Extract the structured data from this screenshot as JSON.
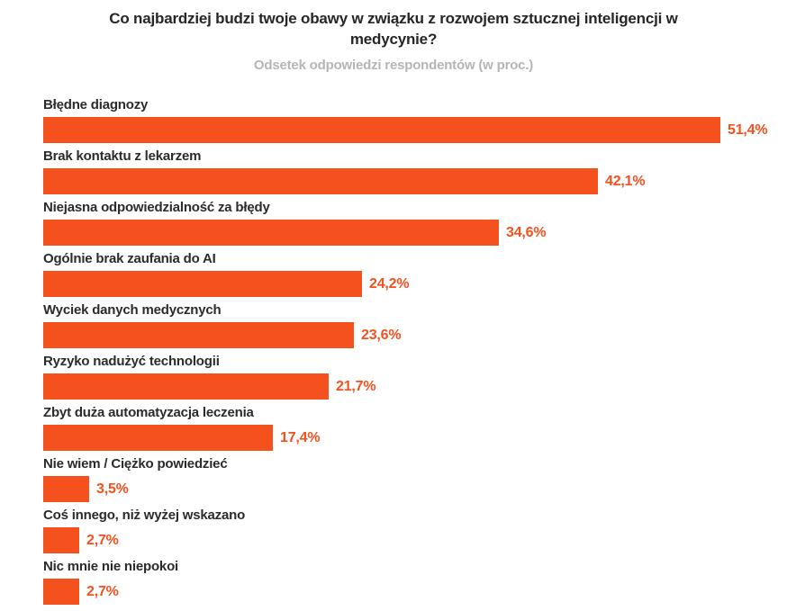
{
  "header": {
    "title": "Co najbardziej budzi twoje obawy w związku z rozwojem sztucznej inteligencji w medycynie?",
    "subtitle": "Odsetek odpowiedzi respondentów (w proc.)"
  },
  "colors": {
    "background": "#ffffff",
    "bar": "#f4511e",
    "value_label": "#f4511e",
    "category_label": "#2b2b2b",
    "title": "#262626",
    "subtitle": "#b5b5b5"
  },
  "chart_data": {
    "type": "bar",
    "orientation": "horizontal",
    "title": "Co najbardziej budzi twoje obawy w związku z rozwojem sztucznej inteligencji w medycynie?",
    "subtitle": "Odsetek odpowiedzi respondentów (w proc.)",
    "unit": "%",
    "grid": false,
    "legend": false,
    "xlim": [
      0,
      51.4
    ],
    "categories": [
      "Błędne diagnozy",
      "Brak kontaktu z lekarzem",
      "Niejasna odpowiedzialność za błędy",
      "Ogólnie brak zaufania do AI",
      "Wyciek danych medycznych",
      "Ryzyko nadużyć technologii",
      "Zbyt duża automatyzacja leczenia",
      "Nie wiem / Ciężko powiedzieć",
      "Coś innego, niż wyżej wskazano",
      "Nic mnie nie niepokoi"
    ],
    "values": [
      51.4,
      42.1,
      34.6,
      24.2,
      23.6,
      21.7,
      17.4,
      3.5,
      2.7,
      2.7
    ],
    "value_labels": [
      "51,4%",
      "42,1%",
      "34,6%",
      "24,2%",
      "23,6%",
      "21,7%",
      "17,4%",
      "3,5%",
      "2,7%",
      "2,7%"
    ]
  }
}
